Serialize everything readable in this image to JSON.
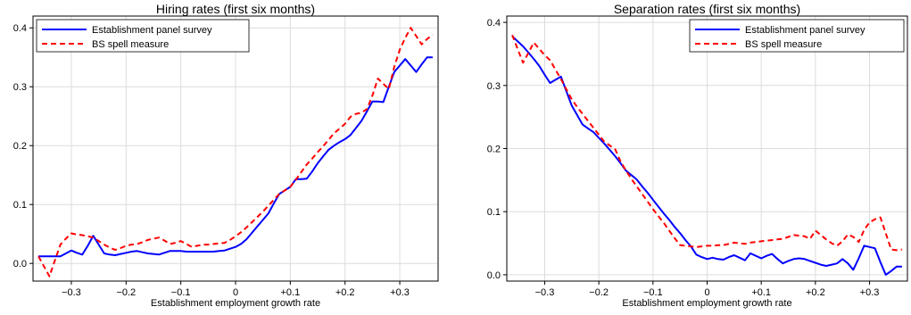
{
  "chart_data": [
    {
      "type": "line",
      "title": "Hiring rates (first six months)",
      "xlabel": "Establishment employment growth rate",
      "ylabel": "",
      "xlim": [
        -0.37,
        0.37
      ],
      "ylim": [
        -0.03,
        0.42
      ],
      "xticks": [
        -0.3,
        -0.2,
        -0.1,
        0,
        0.1,
        0.2,
        0.3
      ],
      "xtick_labels": [
        "−0.3",
        "−0.2",
        "−0.1",
        "0",
        "+0.1",
        "+0.2",
        "+0.3"
      ],
      "yticks": [
        0.0,
        0.1,
        0.2,
        0.3,
        0.4
      ],
      "ytick_labels": [
        "0.0",
        "0.1",
        "0.2",
        "0.3",
        "0.4"
      ],
      "grid": true,
      "legend_position": "top-left",
      "x": [
        -0.36,
        -0.35,
        -0.34,
        -0.33,
        -0.32,
        -0.31,
        -0.3,
        -0.29,
        -0.28,
        -0.27,
        -0.26,
        -0.25,
        -0.24,
        -0.23,
        -0.22,
        -0.21,
        -0.2,
        -0.19,
        -0.18,
        -0.17,
        -0.16,
        -0.15,
        -0.14,
        -0.13,
        -0.12,
        -0.11,
        -0.1,
        -0.09,
        -0.08,
        -0.07,
        -0.06,
        -0.05,
        -0.04,
        -0.03,
        -0.02,
        -0.01,
        0.0,
        0.01,
        0.02,
        0.03,
        0.04,
        0.05,
        0.06,
        0.07,
        0.08,
        0.09,
        0.1,
        0.11,
        0.12,
        0.13,
        0.14,
        0.15,
        0.16,
        0.17,
        0.18,
        0.19,
        0.2,
        0.21,
        0.22,
        0.23,
        0.24,
        0.25,
        0.26,
        0.27,
        0.28,
        0.29,
        0.3,
        0.31,
        0.32,
        0.33,
        0.34,
        0.35,
        0.36
      ],
      "series": [
        {
          "name": "Establishment panel survey",
          "color": "#0000ff",
          "dash": "solid",
          "values": [
            0.012,
            0.012,
            0.012,
            0.012,
            0.012,
            0.017,
            0.022,
            0.018,
            0.015,
            0.03,
            0.047,
            0.032,
            0.017,
            0.015,
            0.014,
            0.016,
            0.018,
            0.02,
            0.021,
            0.019,
            0.017,
            0.016,
            0.015,
            0.018,
            0.021,
            0.021,
            0.021,
            0.02,
            0.02,
            0.02,
            0.02,
            0.02,
            0.02,
            0.021,
            0.022,
            0.025,
            0.028,
            0.033,
            0.041,
            0.052,
            0.063,
            0.074,
            0.085,
            0.102,
            0.118,
            0.124,
            0.13,
            0.143,
            0.143,
            0.144,
            0.156,
            0.17,
            0.182,
            0.193,
            0.2,
            0.206,
            0.211,
            0.218,
            0.23,
            0.242,
            0.258,
            0.275,
            0.275,
            0.274,
            0.3,
            0.325,
            0.336,
            0.347,
            0.336,
            0.325,
            0.338,
            0.35,
            0.35
          ]
        },
        {
          "name": "BS spell measure",
          "color": "#ff0000",
          "dash": "dashed",
          "values": [
            0.012,
            -0.005,
            -0.022,
            0.005,
            0.032,
            0.042,
            0.051,
            0.049,
            0.048,
            0.046,
            0.044,
            0.038,
            0.032,
            0.027,
            0.023,
            0.026,
            0.03,
            0.032,
            0.033,
            0.036,
            0.04,
            0.042,
            0.044,
            0.039,
            0.033,
            0.035,
            0.038,
            0.033,
            0.028,
            0.03,
            0.032,
            0.032,
            0.033,
            0.034,
            0.035,
            0.04,
            0.046,
            0.053,
            0.061,
            0.07,
            0.079,
            0.088,
            0.098,
            0.108,
            0.118,
            0.124,
            0.13,
            0.142,
            0.155,
            0.168,
            0.178,
            0.189,
            0.199,
            0.21,
            0.221,
            0.229,
            0.237,
            0.249,
            0.254,
            0.256,
            0.262,
            0.285,
            0.314,
            0.305,
            0.296,
            0.334,
            0.363,
            0.383,
            0.4,
            0.386,
            0.372,
            0.381,
            0.388
          ]
        }
      ]
    },
    {
      "type": "line",
      "title": "Separation rates (first six months)",
      "xlabel": "Establishment employment growth rate",
      "ylabel": "",
      "xlim": [
        -0.37,
        0.37
      ],
      "ylim": [
        -0.01,
        0.41
      ],
      "xticks": [
        -0.3,
        -0.2,
        -0.1,
        0,
        0.1,
        0.2,
        0.3
      ],
      "xtick_labels": [
        "−0.3",
        "−0.2",
        "−0.1",
        "0",
        "+0.1",
        "+0.2",
        "+0.3"
      ],
      "yticks": [
        0.0,
        0.1,
        0.2,
        0.3,
        0.4
      ],
      "ytick_labels": [
        "0.0",
        "0.1",
        "0.2",
        "0.3",
        "0.4"
      ],
      "grid": true,
      "legend_position": "top-right",
      "x": [
        -0.36,
        -0.35,
        -0.34,
        -0.33,
        -0.32,
        -0.31,
        -0.3,
        -0.29,
        -0.28,
        -0.27,
        -0.26,
        -0.25,
        -0.24,
        -0.23,
        -0.22,
        -0.21,
        -0.2,
        -0.19,
        -0.18,
        -0.17,
        -0.16,
        -0.15,
        -0.14,
        -0.13,
        -0.12,
        -0.11,
        -0.1,
        -0.09,
        -0.08,
        -0.07,
        -0.06,
        -0.05,
        -0.04,
        -0.03,
        -0.02,
        -0.01,
        0.0,
        0.01,
        0.02,
        0.03,
        0.04,
        0.05,
        0.06,
        0.07,
        0.08,
        0.09,
        0.1,
        0.11,
        0.12,
        0.13,
        0.14,
        0.15,
        0.16,
        0.17,
        0.18,
        0.19,
        0.2,
        0.21,
        0.22,
        0.23,
        0.24,
        0.25,
        0.26,
        0.27,
        0.28,
        0.29,
        0.3,
        0.31,
        0.32,
        0.33,
        0.34,
        0.35,
        0.36
      ],
      "series": [
        {
          "name": "Establishment panel survey",
          "color": "#0000ff",
          "dash": "solid",
          "values": [
            0.378,
            0.37,
            0.362,
            0.352,
            0.342,
            0.331,
            0.317,
            0.304,
            0.309,
            0.314,
            0.291,
            0.268,
            0.253,
            0.238,
            0.232,
            0.226,
            0.217,
            0.208,
            0.198,
            0.188,
            0.177,
            0.165,
            0.158,
            0.151,
            0.14,
            0.13,
            0.119,
            0.108,
            0.097,
            0.087,
            0.076,
            0.066,
            0.055,
            0.045,
            0.032,
            0.028,
            0.025,
            0.027,
            0.025,
            0.024,
            0.028,
            0.031,
            0.027,
            0.023,
            0.034,
            0.03,
            0.026,
            0.03,
            0.033,
            0.025,
            0.018,
            0.022,
            0.025,
            0.026,
            0.025,
            0.022,
            0.019,
            0.016,
            0.014,
            0.016,
            0.018,
            0.025,
            0.018,
            0.008,
            0.026,
            0.046,
            0.044,
            0.042,
            0.02,
            0.0,
            0.006,
            0.013,
            0.013
          ]
        },
        {
          "name": "BS spell measure",
          "color": "#ff0000",
          "dash": "dashed",
          "values": [
            0.38,
            0.358,
            0.336,
            0.352,
            0.368,
            0.358,
            0.348,
            0.34,
            0.325,
            0.31,
            0.294,
            0.278,
            0.266,
            0.255,
            0.244,
            0.233,
            0.222,
            0.211,
            0.205,
            0.199,
            0.18,
            0.165,
            0.152,
            0.14,
            0.128,
            0.116,
            0.104,
            0.093,
            0.082,
            0.07,
            0.058,
            0.047,
            0.046,
            0.045,
            0.044,
            0.045,
            0.046,
            0.046,
            0.047,
            0.047,
            0.049,
            0.051,
            0.05,
            0.049,
            0.051,
            0.052,
            0.053,
            0.054,
            0.055,
            0.056,
            0.057,
            0.06,
            0.063,
            0.062,
            0.061,
            0.057,
            0.07,
            0.063,
            0.056,
            0.05,
            0.046,
            0.053,
            0.064,
            0.06,
            0.052,
            0.071,
            0.083,
            0.088,
            0.091,
            0.066,
            0.04,
            0.039,
            0.04
          ]
        }
      ]
    }
  ]
}
